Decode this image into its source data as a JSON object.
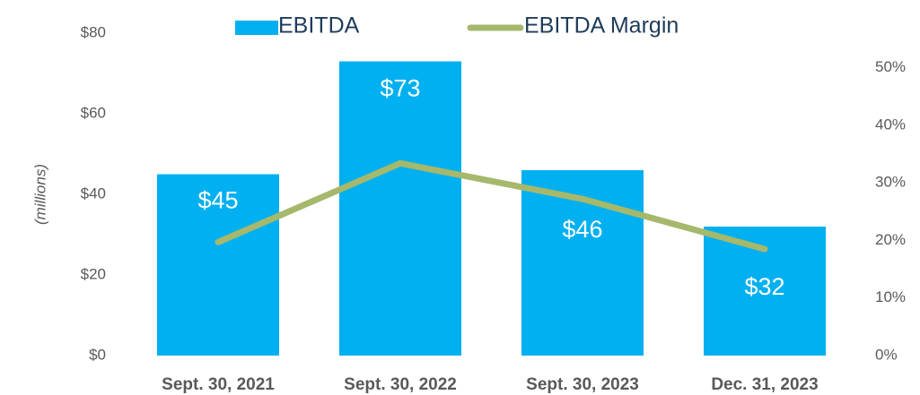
{
  "chart_data": {
    "type": "bar",
    "categories": [
      "Sept. 30, 2021",
      "Sept. 30, 2022",
      "Sept. 30, 2023",
      "Dec. 31, 2023"
    ],
    "series": [
      {
        "name": "EBITDA",
        "color": "#00b0f0",
        "values": [
          45,
          73,
          46,
          32
        ],
        "value_labels": [
          "$45",
          "$73",
          "$46",
          "$32"
        ]
      },
      {
        "name": "EBITDA Margin",
        "color": "#a6b86c",
        "axis": "y2",
        "type": "line",
        "values": [
          19.7,
          33.4,
          27.2,
          18.5
        ]
      }
    ],
    "ylabel": "(millions)",
    "ylim": [
      0,
      80
    ],
    "yticks": [
      {
        "value": 0,
        "label": "$0"
      },
      {
        "value": 20,
        "label": "$20"
      },
      {
        "value": 40,
        "label": "$40"
      },
      {
        "value": 60,
        "label": "$60"
      },
      {
        "value": 80,
        "label": "$80"
      }
    ],
    "y2lim": [
      0,
      56
    ],
    "y2ticks": [
      {
        "value": 0,
        "label": "0%"
      },
      {
        "value": 10,
        "label": "10%"
      },
      {
        "value": 20,
        "label": "20%"
      },
      {
        "value": 30,
        "label": "30%"
      },
      {
        "value": 40,
        "label": "40%"
      },
      {
        "value": 50,
        "label": "50%"
      }
    ],
    "legend": "top"
  }
}
